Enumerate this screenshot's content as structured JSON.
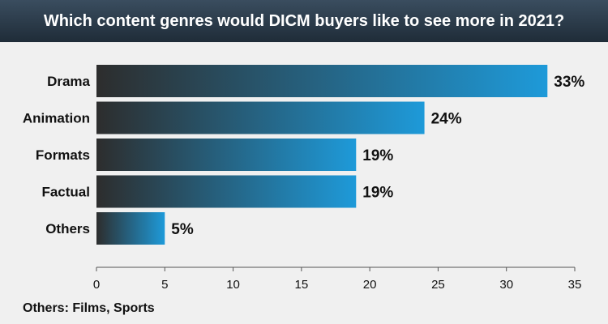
{
  "title": "Which content genres would DICM buyers like to see more in 2021?",
  "footnote": "Others: Films, Sports",
  "colors": {
    "bar_start": "#2d2d2d",
    "bar_end": "#1e9ad9",
    "title_bg": "#2a3a4a",
    "background": "#f0f0f0"
  },
  "chart_data": {
    "type": "bar",
    "orientation": "horizontal",
    "categories": [
      "Drama",
      "Animation",
      "Formats",
      "Factual",
      "Others"
    ],
    "values": [
      33,
      24,
      19,
      19,
      5
    ],
    "value_labels": [
      "33%",
      "24%",
      "19%",
      "19%",
      "5%"
    ],
    "xlim": [
      0,
      35
    ],
    "xticks": [
      0,
      5,
      10,
      15,
      20,
      25,
      30,
      35
    ],
    "grid": false
  }
}
